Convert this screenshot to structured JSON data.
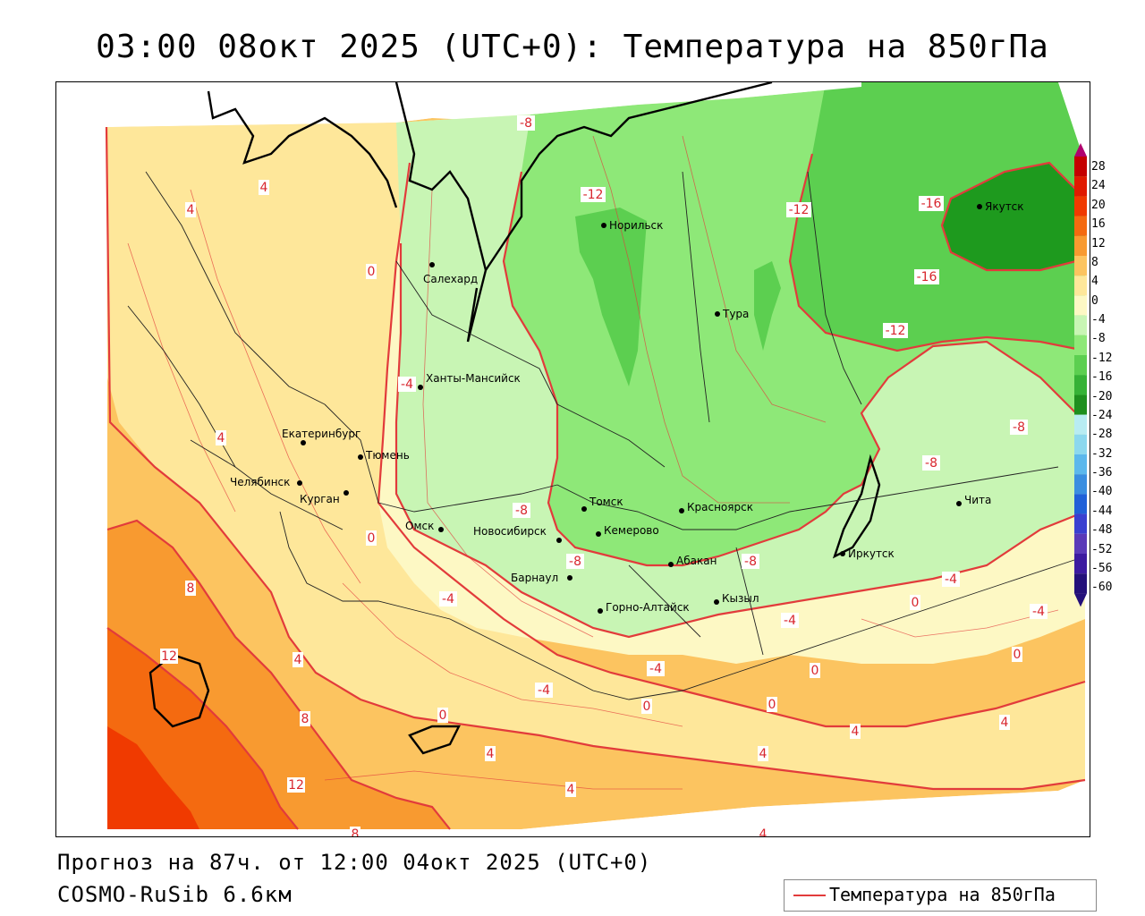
{
  "title": "03:00 08окт 2025 (UTC+0): Температура на 850гПа",
  "forecast_line": "Прогноз на 87ч. от 12:00 04окт 2025 (UTC+0)",
  "model_line": "COSMO-RuSib 6.6км",
  "legend_label": "Температура на 850гПа",
  "colors": {
    "contour": "#e23b3b",
    "coast": "#000000",
    "border": "#222222"
  },
  "scale": {
    "labels": [
      "28",
      "24",
      "20",
      "16",
      "12",
      "8",
      "4",
      "0",
      "-4",
      "-8",
      "-12",
      "-16",
      "-20",
      "-24",
      "-28",
      "-32",
      "-36",
      "-40",
      "-44",
      "-48",
      "-52",
      "-56",
      "-60"
    ],
    "colors": [
      "#b0006e",
      "#c40000",
      "#e01a00",
      "#f03a00",
      "#f46a10",
      "#f89a30",
      "#fcc460",
      "#fee79a",
      "#fdf8c4",
      "#c8f5b4",
      "#8ee878",
      "#5ccf50",
      "#36b236",
      "#1e8f1e",
      "#b8ecf2",
      "#8cd8ee",
      "#5cb8ec",
      "#3a8ee0",
      "#2060d8",
      "#3a40d0",
      "#5a3ab8",
      "#3c1aa0",
      "#24107a"
    ]
  },
  "cities": [
    {
      "name": "Салехард"
    },
    {
      "name": "Норильск"
    },
    {
      "name": "Якутск"
    },
    {
      "name": "Тура"
    },
    {
      "name": "Ханты-Мансийск"
    },
    {
      "name": "Екатеринбург"
    },
    {
      "name": "Тюмень"
    },
    {
      "name": "Челябинск"
    },
    {
      "name": "Курган"
    },
    {
      "name": "Омск"
    },
    {
      "name": "Новосибирск"
    },
    {
      "name": "Томск"
    },
    {
      "name": "Кемерово"
    },
    {
      "name": "Красноярск"
    },
    {
      "name": "Барнаул"
    },
    {
      "name": "Абакан"
    },
    {
      "name": "Кызыл"
    },
    {
      "name": "Горно-Алтайск"
    },
    {
      "name": "Иркутск"
    },
    {
      "name": "Чита"
    }
  ],
  "isotherm_labels": [
    "-8",
    "-12",
    "-12",
    "-16",
    "-16",
    "-12",
    "-8",
    "-8",
    "-8",
    "-8",
    "-8",
    "-4",
    "-4",
    "-4",
    "-4",
    "-4",
    "-4",
    "-4",
    "0",
    "0",
    "0",
    "0",
    "0",
    "0",
    "0",
    "0",
    "4",
    "4",
    "4",
    "4",
    "4",
    "4",
    "4",
    "4",
    "4",
    "4",
    "4",
    "8",
    "8",
    "8",
    "12",
    "12"
  ]
}
